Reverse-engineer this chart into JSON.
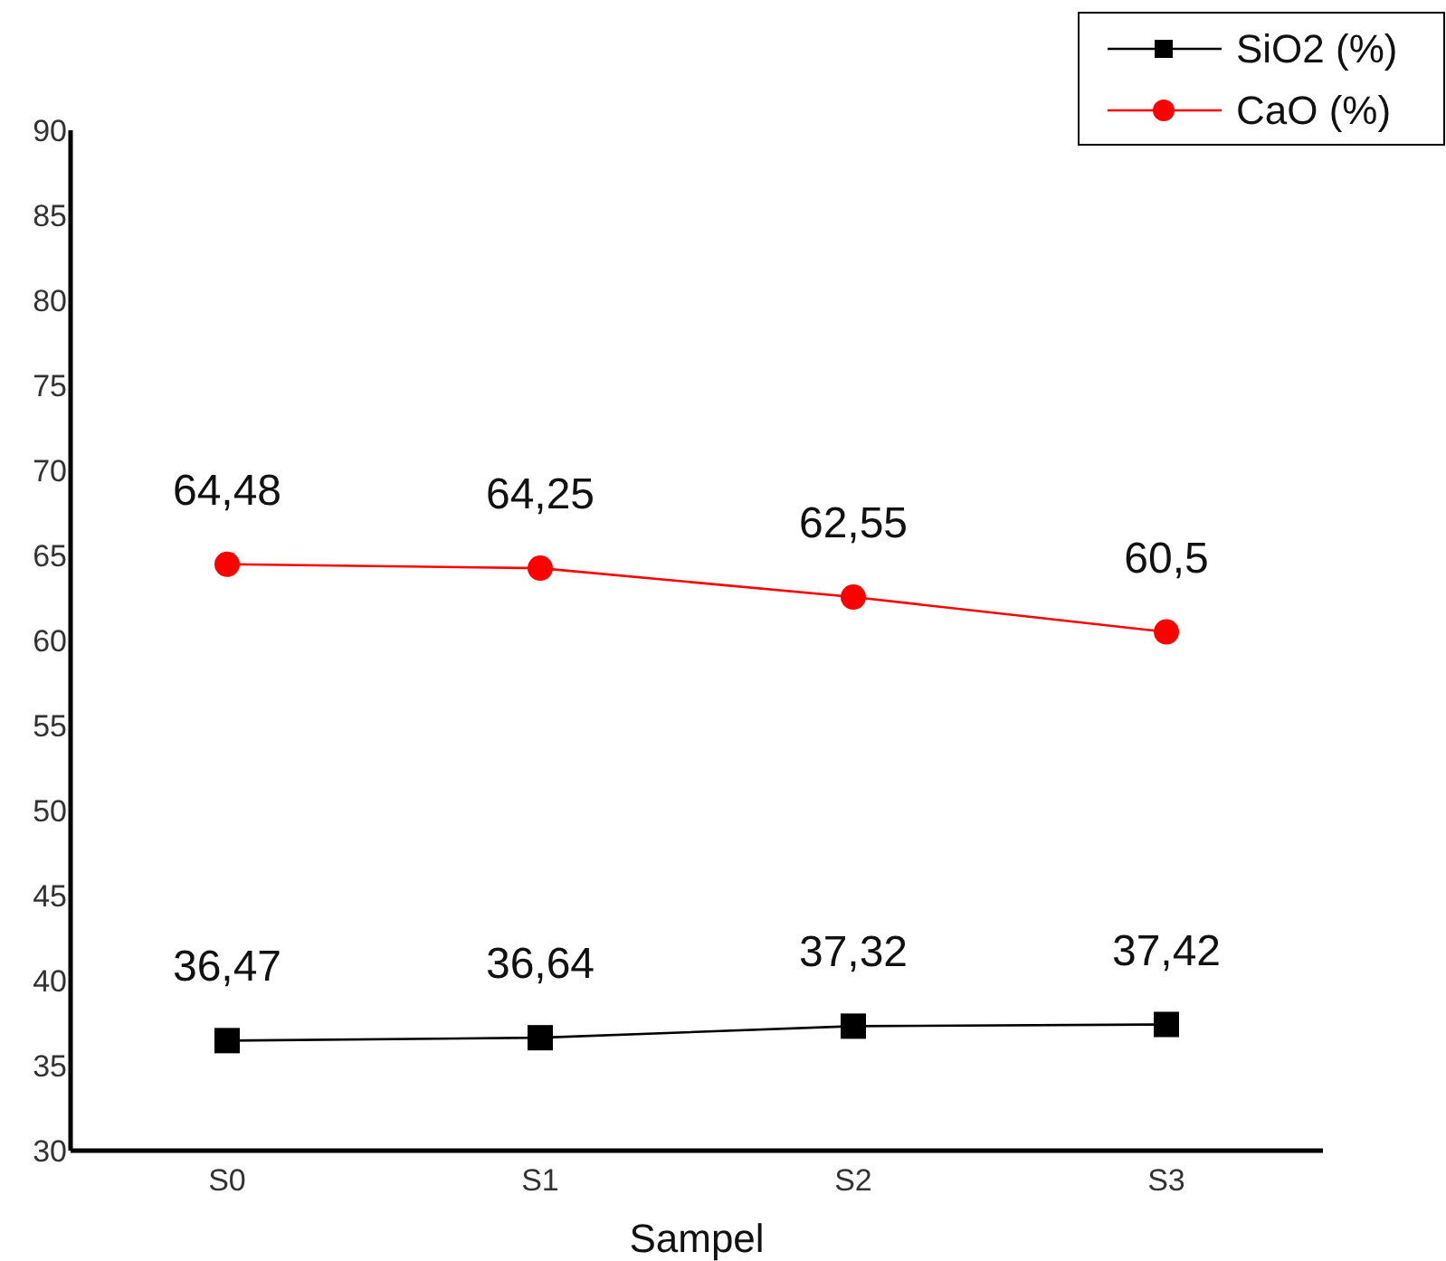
{
  "chart_data": {
    "type": "line",
    "xlabel": "Sampel",
    "categories": [
      "S0",
      "S1",
      "S2",
      "S3"
    ],
    "series": [
      {
        "name": "SiO2 (%)",
        "color": "#000000",
        "marker": "square",
        "values": [
          36.47,
          36.64,
          37.32,
          37.42
        ],
        "value_labels": [
          "36,47",
          "36,64",
          "37,32",
          "37,42"
        ]
      },
      {
        "name": "CaO (%)",
        "color": "#ff0000",
        "marker": "circle",
        "values": [
          64.48,
          64.25,
          62.55,
          60.5
        ],
        "value_labels": [
          "64,48",
          "64,25",
          "62,55",
          "60,5"
        ]
      }
    ],
    "ylim": [
      30,
      90
    ],
    "yticks": [
      30,
      35,
      40,
      45,
      50,
      55,
      60,
      65,
      70,
      75,
      80,
      85,
      90
    ],
    "grid": false,
    "legend": "top right",
    "line_style": "solid"
  }
}
